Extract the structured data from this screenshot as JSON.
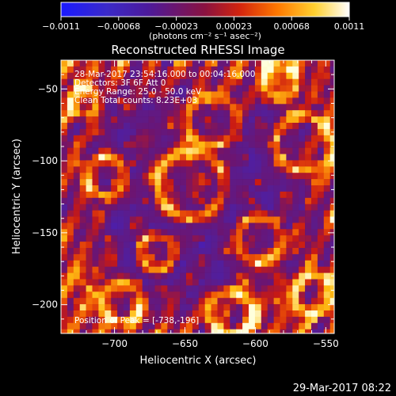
{
  "colorbar": {
    "ticks": [
      "-0.0011",
      "-0.00068",
      "-0.00023",
      "0.00023",
      "0.00068",
      "0.0011"
    ],
    "unit": "(photons cm⁻² s⁻¹ asec⁻²)",
    "min": -0.0011,
    "max": 0.0011,
    "colors": [
      "#1a1aff",
      "#4a14b8",
      "#5a1e96",
      "#b0151a",
      "#e04a08",
      "#ff9a00",
      "#ffe24a",
      "#ffffff"
    ]
  },
  "chart_data": {
    "type": "heatmap",
    "title": "Reconstructed RHESSI Image",
    "xlabel": "Heliocentric X (arcsec)",
    "ylabel": "Heliocentric Y (arcsec)",
    "xlim": [
      -738,
      -544
    ],
    "ylim": [
      -220,
      -30
    ],
    "xticks": [
      -700,
      -650,
      -600,
      -550
    ],
    "yticks": [
      -200,
      -150,
      -100,
      -50
    ],
    "xtick_labels": [
      "−700",
      "−650",
      "−600",
      "−550"
    ],
    "ytick_labels": [
      "−200",
      "−150",
      "−100",
      "−50"
    ],
    "annotations": [
      "28-Mar-2017 23:54:16.000 to 00:04:16.000",
      "Detectors: 3F 6F  Att 0",
      "Energy Range: 25.0 - 50.0 keV",
      "Clean    Total counts: 8.23E+03"
    ],
    "peak_label": "Position of Peak = [-738,-196]",
    "peak": [
      -738,
      -196
    ]
  },
  "footer": {
    "timestamp": "29-Mar-2017 08:22"
  }
}
